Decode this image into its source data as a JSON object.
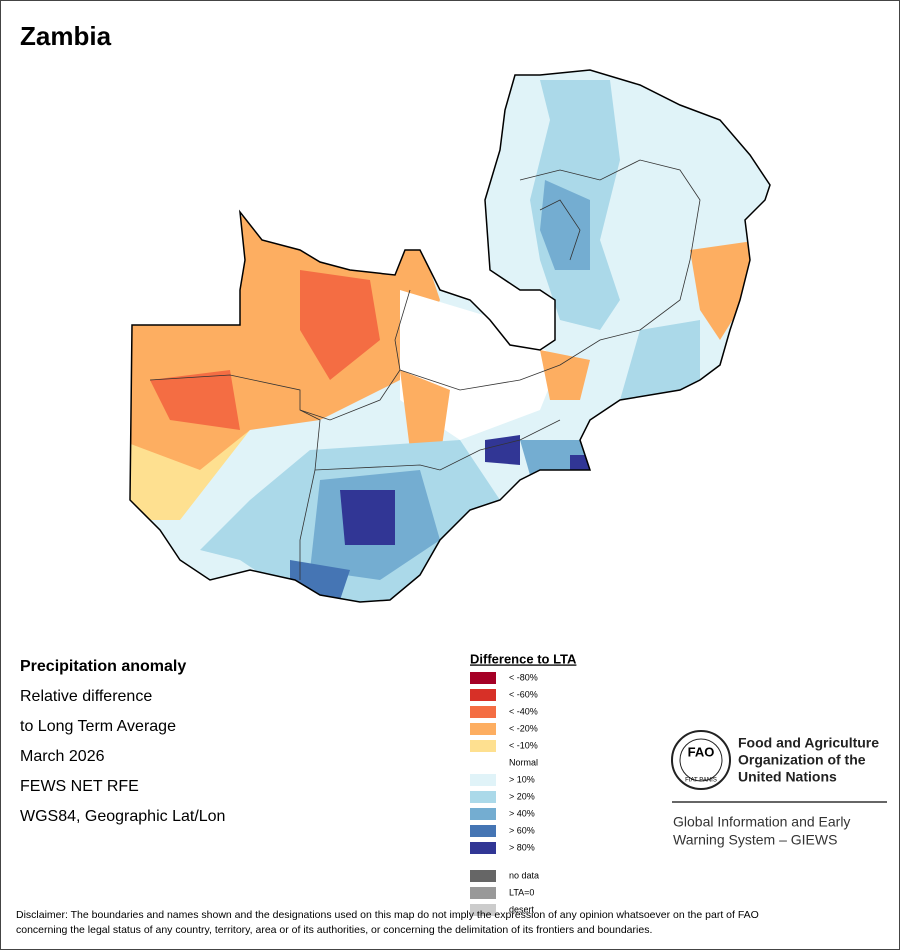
{
  "header": {
    "title": "Zambia"
  },
  "info": {
    "lines": [
      "Precipitation anomaly",
      "Relative difference",
      "to Long Term Average",
      "March 2026",
      "FEWS NET RFE",
      "WGS84, Geographic Lat/Lon"
    ]
  },
  "legend": {
    "title": "Difference to LTA",
    "items": [
      {
        "label": "< -80%",
        "color": "#a50026"
      },
      {
        "label": "< -60%",
        "color": "#d73027"
      },
      {
        "label": "< -40%",
        "color": "#f46d43"
      },
      {
        "label": "< -20%",
        "color": "#fdae61"
      },
      {
        "label": "< -10%",
        "color": "#fee090"
      },
      {
        "label": "Normal",
        "color": "#ffffff"
      },
      {
        "label": "> 10%",
        "color": "#e0f3f8"
      },
      {
        "label": "> 20%",
        "color": "#abd9e9"
      },
      {
        "label": "> 40%",
        "color": "#74add1"
      },
      {
        "label": "> 60%",
        "color": "#4575b4"
      },
      {
        "label": "> 80%",
        "color": "#313695"
      }
    ],
    "extra": [
      {
        "label": "no data",
        "color": "#666666"
      },
      {
        "label": "LTA=0",
        "color": "#999999"
      },
      {
        "label": "desert",
        "color": "#cccccc"
      }
    ]
  },
  "logo": {
    "acronym": "FAO",
    "motto": "FIAT PANIS",
    "org_lines": [
      "Food and Agriculture",
      "Organization of the",
      "United Nations"
    ],
    "system_lines": [
      "Global Information and Early",
      "Warning System – GIEWS"
    ]
  },
  "disclaimer": {
    "lines": [
      "Disclaimer: The boundaries and names shown and the designations used on this map do not imply the expression of any opinion whatsoever on the part of FAO",
      "concerning the legal status of any country, territory, area or of its authorities, or concerning the delimitation of its frontiers and boundaries."
    ]
  }
}
